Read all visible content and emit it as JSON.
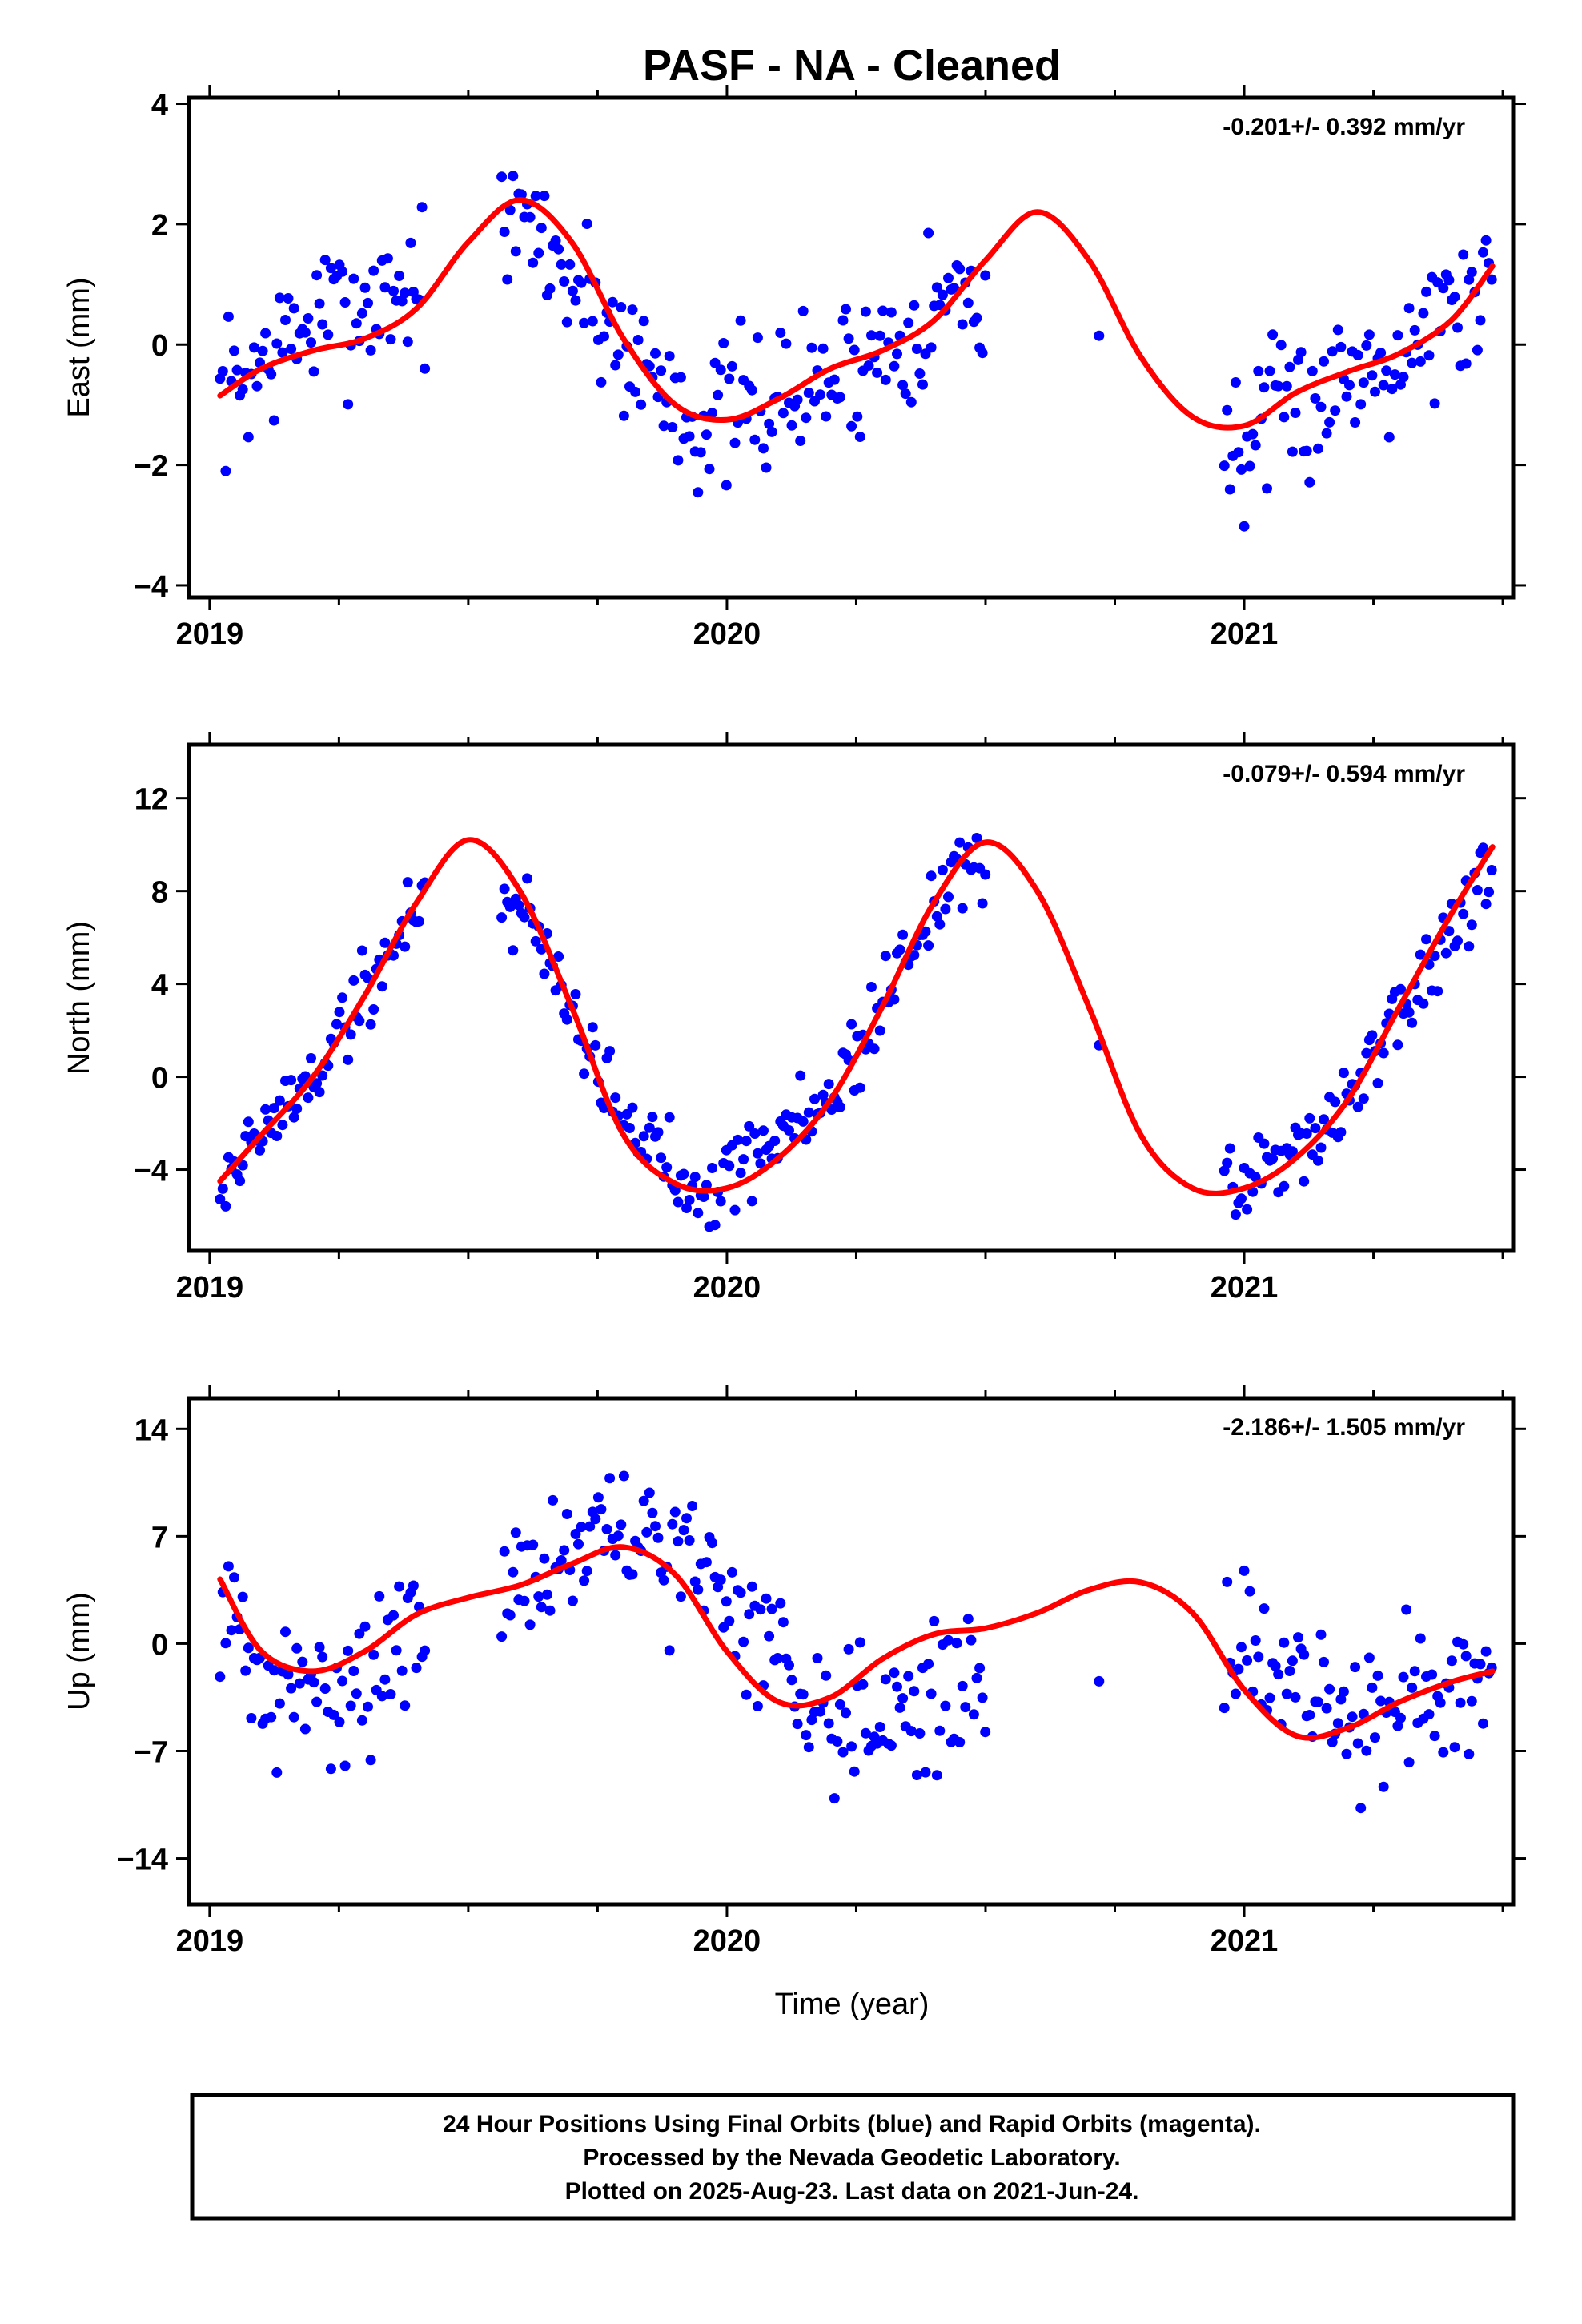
{
  "title": "PASF  - NA - Cleaned",
  "xlabel": "Time (year)",
  "caption": {
    "line1": "24 Hour Positions Using Final Orbits (blue) and Rapid Orbits (magenta).",
    "line2": "Processed by the Nevada Geodetic Laboratory.",
    "line3": "Plotted on 2025-Aug-23. Last data on 2021-Jun-24."
  },
  "colors": {
    "points": "#0000ff",
    "fit": "#ff0000",
    "axes": "#000000"
  },
  "chart_data": [
    {
      "type": "scatter",
      "ylabel": "East (mm)",
      "rate": "-0.201+/- 0.392 mm/yr",
      "xlim": [
        2018.96,
        2021.52
      ],
      "ylim": [
        -4.2,
        4.1
      ],
      "xticks": [
        2019,
        2020,
        2021
      ],
      "xticklabels": [
        "2019",
        "2020",
        "2021"
      ],
      "yticks": [
        -4,
        -2,
        0,
        2,
        4
      ],
      "yticklabels": [
        "−4",
        "−2",
        "0",
        "2",
        "4"
      ],
      "fit": {
        "x": [
          2019.02,
          2019.1,
          2019.2,
          2019.3,
          2019.4,
          2019.5,
          2019.6,
          2019.7,
          2019.8,
          2019.9,
          2020.0,
          2020.1,
          2020.2,
          2020.3,
          2020.4,
          2020.5,
          2020.6,
          2020.7,
          2020.8,
          2020.9,
          2021.0,
          2021.1,
          2021.2,
          2021.3,
          2021.4,
          2021.48
        ],
        "y": [
          -0.85,
          -0.4,
          -0.1,
          0.1,
          0.6,
          1.7,
          2.4,
          1.7,
          0.1,
          -1.0,
          -1.25,
          -0.9,
          -0.4,
          -0.1,
          0.4,
          1.4,
          2.2,
          1.4,
          -0.2,
          -1.2,
          -1.35,
          -0.8,
          -0.45,
          -0.15,
          0.4,
          1.3
        ]
      },
      "series": [
        {
          "anchors": {
            "x": [
              2019.02,
              2019.2,
              2019.45,
              2019.62,
              2019.8,
              2019.95,
              2020.2,
              2020.45,
              2020.72,
              2020.98,
              2021.2,
              2021.48
            ],
            "y": [
              -0.9,
              0.4,
              1.2,
              2.0,
              0.0,
              -1.3,
              -0.6,
              0.9,
              0.1,
              -1.8,
              -0.5,
              1.0
            ]
          },
          "spread": 0.9,
          "seed": 7
        }
      ]
    },
    {
      "type": "scatter",
      "ylabel": "North (mm)",
      "rate": "-0.079+/- 0.594 mm/yr",
      "xlim": [
        2018.96,
        2021.52
      ],
      "ylim": [
        -7.5,
        14.3
      ],
      "xticks": [
        2019,
        2020,
        2021
      ],
      "xticklabels": [
        "2019",
        "2020",
        "2021"
      ],
      "yticks": [
        -4,
        0,
        4,
        8,
        12
      ],
      "yticklabels": [
        "−4",
        "0",
        "4",
        "8",
        "12"
      ],
      "fit": {
        "x": [
          2019.02,
          2019.1,
          2019.2,
          2019.3,
          2019.4,
          2019.5,
          2019.6,
          2019.7,
          2019.8,
          2019.9,
          2020.0,
          2020.1,
          2020.2,
          2020.3,
          2020.4,
          2020.5,
          2020.6,
          2020.7,
          2020.8,
          2020.9,
          2021.0,
          2021.1,
          2021.2,
          2021.3,
          2021.4,
          2021.48
        ],
        "y": [
          -4.5,
          -2.5,
          0.0,
          3.5,
          7.5,
          10.2,
          8.0,
          3.0,
          -2.5,
          -4.6,
          -4.8,
          -3.5,
          -1.0,
          3.0,
          7.5,
          10.1,
          8.0,
          3.0,
          -2.5,
          -4.8,
          -4.8,
          -3.5,
          -1.0,
          3.0,
          7.0,
          9.9
        ]
      },
      "series": [
        {
          "anchors": {
            "x": [
              2019.02,
              2019.2,
              2019.45,
              2019.62,
              2019.8,
              2019.95,
              2020.2,
              2020.45,
              2020.72,
              2020.98,
              2021.2,
              2021.48
            ],
            "y": [
              -4.5,
              0.0,
              9.0,
              7.0,
              -2.0,
              -4.8,
              -1.0,
              9.5,
              1.2,
              -5.2,
              -1.0,
              9.0
            ]
          },
          "spread": 1.3,
          "seed": 19
        }
      ]
    },
    {
      "type": "scatter",
      "ylabel": "Up (mm)",
      "rate": "-2.186+/- 1.505 mm/yr",
      "xlim": [
        2018.96,
        2021.52
      ],
      "ylim": [
        -17,
        16
      ],
      "xticks": [
        2019,
        2020,
        2021
      ],
      "xticklabels": [
        "2019",
        "2020",
        "2021"
      ],
      "yticks": [
        -14,
        -7,
        0,
        7,
        14
      ],
      "yticklabels": [
        "−14",
        "−7",
        "0",
        "7",
        "14"
      ],
      "fit": {
        "x": [
          2019.02,
          2019.1,
          2019.2,
          2019.3,
          2019.4,
          2019.5,
          2019.6,
          2019.7,
          2019.8,
          2019.9,
          2020.0,
          2020.1,
          2020.2,
          2020.3,
          2020.4,
          2020.5,
          2020.6,
          2020.7,
          2020.8,
          2020.9,
          2021.0,
          2021.1,
          2021.2,
          2021.3,
          2021.4,
          2021.48
        ],
        "y": [
          4.2,
          -0.5,
          -1.8,
          -0.5,
          1.9,
          3.0,
          3.8,
          5.2,
          6.3,
          4.5,
          -0.5,
          -3.8,
          -3.5,
          -1.0,
          0.6,
          1.0,
          2.0,
          3.5,
          4.0,
          2.0,
          -3.0,
          -6.0,
          -5.5,
          -3.8,
          -2.5,
          -1.8
        ]
      },
      "series": [
        {
          "anchors": {
            "x": [
              2019.02,
              2019.12,
              2019.3,
              2019.45,
              2019.62,
              2019.8,
              2019.95,
              2020.2,
              2020.45,
              2020.72,
              2020.98,
              2021.2,
              2021.48
            ],
            "y": [
              3.0,
              -4.0,
              -2.0,
              1.0,
              5.0,
              7.0,
              5.0,
              -4.5,
              -3.5,
              -3.0,
              0.5,
              -5.5,
              -1.0
            ]
          },
          "spread": 3.3,
          "seed": 31
        }
      ]
    }
  ]
}
